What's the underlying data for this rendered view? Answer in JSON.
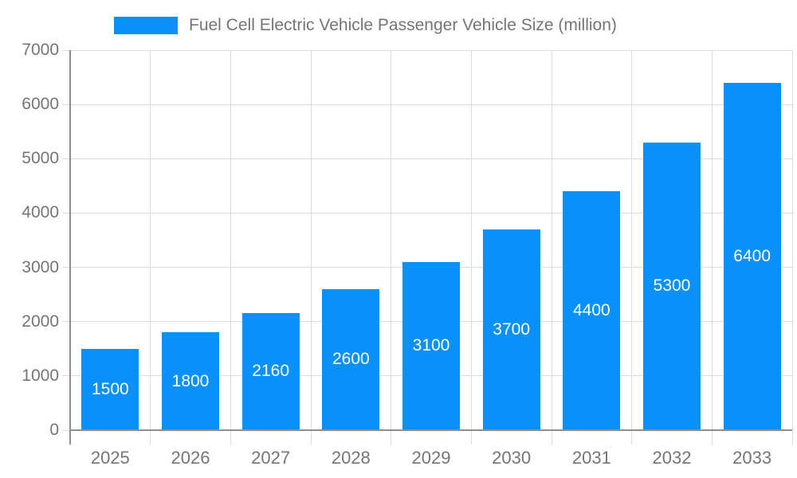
{
  "legend": {
    "label": "Fuel Cell Electric Vehicle Passenger Vehicle Size (million)"
  },
  "chart_data": {
    "type": "bar",
    "title": "",
    "categories": [
      "2025",
      "2026",
      "2027",
      "2028",
      "2029",
      "2030",
      "2031",
      "2032",
      "2033"
    ],
    "values": [
      1500,
      1800,
      2160,
      2600,
      3100,
      3700,
      4400,
      5300,
      6400
    ],
    "series": [
      {
        "name": "Fuel Cell Electric Vehicle Passenger Vehicle Size (million)",
        "values": [
          1500,
          1800,
          2160,
          2600,
          3100,
          3700,
          4400,
          5300,
          6400
        ]
      }
    ],
    "xlabel": "",
    "ylabel": "",
    "ylim": [
      0,
      7000
    ],
    "yticks": [
      0,
      1000,
      2000,
      3000,
      4000,
      5000,
      6000,
      7000
    ],
    "grid": true,
    "legend_position": "top",
    "bar_color": "#0991FB",
    "value_label_color": "#FFFFFF",
    "grid_color": "#DDDDDD",
    "axis_color": "#8E8E8E",
    "tick_label_color": "#757575"
  }
}
